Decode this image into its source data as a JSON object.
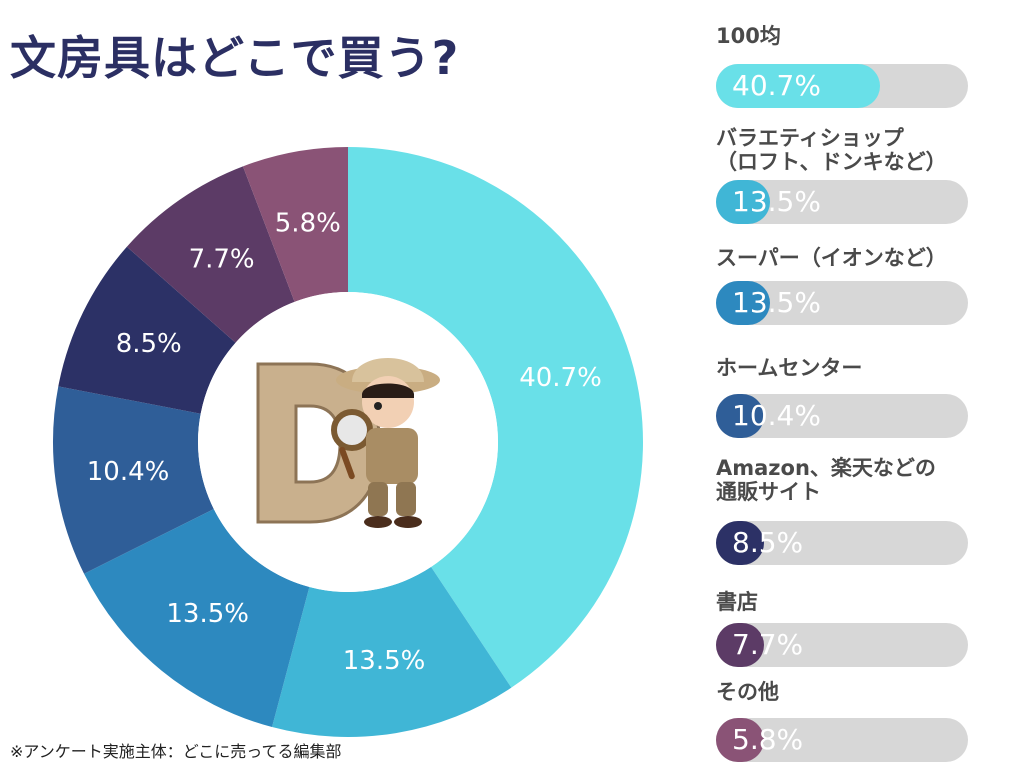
{
  "title": "文房具はどこで買う?",
  "footnote": "※アンケート実施主体：どこに売ってる編集部",
  "chart_data": {
    "type": "donut",
    "categories": [
      "100均",
      "バラエティショップ\n（ロフト、ドンキなど）",
      "スーパー（イオンなど）",
      "ホームセンター",
      "Amazon、楽天などの\n通販サイト",
      "書店",
      "その他"
    ],
    "values": [
      40.7,
      13.5,
      13.5,
      10.4,
      8.5,
      7.7,
      5.8
    ],
    "value_labels": [
      "40.7%",
      "13.5%",
      "13.5%",
      "10.4%",
      "8.5%",
      "7.7%",
      "5.8%"
    ],
    "colors": [
      "#69e0e8",
      "#40b6d6",
      "#2d89bf",
      "#2f5e98",
      "#2c3166",
      "#5c3b66",
      "#8a5376"
    ],
    "legend_position": "right"
  }
}
